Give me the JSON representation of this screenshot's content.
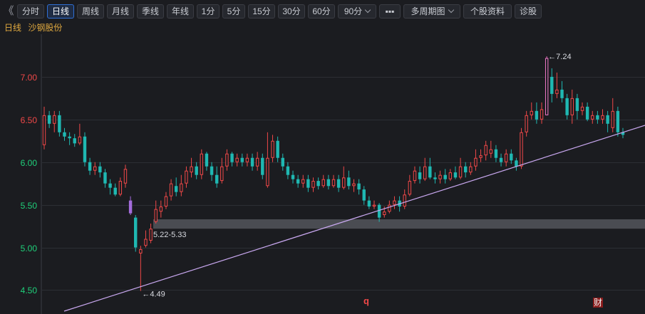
{
  "toolbar": {
    "back_glyph": "《",
    "buttons": [
      {
        "label": "分时",
        "active": false,
        "dropdown": false
      },
      {
        "label": "日线",
        "active": true,
        "dropdown": false
      },
      {
        "label": "周线",
        "active": false,
        "dropdown": false
      },
      {
        "label": "月线",
        "active": false,
        "dropdown": false
      },
      {
        "label": "季线",
        "active": false,
        "dropdown": false
      },
      {
        "label": "年线",
        "active": false,
        "dropdown": false
      },
      {
        "label": "1分",
        "active": false,
        "dropdown": false
      },
      {
        "label": "5分",
        "active": false,
        "dropdown": false
      },
      {
        "label": "15分",
        "active": false,
        "dropdown": false
      },
      {
        "label": "30分",
        "active": false,
        "dropdown": false
      },
      {
        "label": "60分",
        "active": false,
        "dropdown": false
      },
      {
        "label": "90分",
        "active": false,
        "dropdown": true
      },
      {
        "label": "▪▪▪",
        "active": false,
        "dropdown": false
      },
      {
        "label": "多周期图",
        "active": false,
        "dropdown": true
      },
      {
        "label": "个股资料",
        "active": false,
        "dropdown": false
      },
      {
        "label": "诊股",
        "active": false,
        "dropdown": false
      }
    ]
  },
  "header": {
    "period": "日线",
    "stock_name": "沙钢股份"
  },
  "colors": {
    "up": "#f04848",
    "down": "#1fb8b2",
    "grid": "#2c2e34",
    "trendline": "#c9a8f0",
    "support_band": "#4a4c52",
    "special": "#a46cdc",
    "high": "#f078c8"
  },
  "chart_data": {
    "type": "candlestick",
    "y_ticks": [
      {
        "label": "7.00",
        "value": 7.0,
        "color": "#f04848"
      },
      {
        "label": "6.50",
        "value": 6.5,
        "color": "#f04848"
      },
      {
        "label": "6.00",
        "value": 6.0,
        "color": "#1fd07a"
      },
      {
        "label": "5.50",
        "value": 5.5,
        "color": "#1fd07a"
      },
      {
        "label": "5.00",
        "value": 5.0,
        "color": "#1fd07a"
      },
      {
        "label": "4.50",
        "value": 4.5,
        "color": "#1fd07a"
      }
    ],
    "ylim": [
      4.22,
      7.5
    ],
    "candles": [
      [
        6.2,
        6.55,
        6.65,
        6.15
      ],
      [
        6.55,
        6.45,
        6.6,
        6.4
      ],
      [
        6.45,
        6.55,
        6.6,
        6.35
      ],
      [
        6.55,
        6.35,
        6.6,
        6.3
      ],
      [
        6.35,
        6.3,
        6.4,
        6.25
      ],
      [
        6.3,
        6.28,
        6.35,
        6.2
      ],
      [
        6.28,
        6.22,
        6.33,
        6.18
      ],
      [
        6.22,
        6.3,
        6.45,
        6.2
      ],
      [
        6.3,
        6.0,
        6.35,
        5.95
      ],
      [
        6.0,
        5.9,
        6.05,
        5.85
      ],
      [
        5.9,
        5.95,
        6.0,
        5.85
      ],
      [
        5.95,
        5.88,
        6.0,
        5.82
      ],
      [
        5.88,
        5.75,
        5.92,
        5.7
      ],
      [
        5.75,
        5.7,
        5.8,
        5.62
      ],
      [
        5.7,
        5.62,
        5.75,
        5.6
      ],
      [
        5.62,
        5.78,
        5.82,
        5.6
      ],
      [
        5.75,
        5.92,
        5.97,
        5.7
      ],
      [
        5.55,
        5.4,
        5.6,
        5.38
      ],
      [
        5.35,
        5.0,
        5.38,
        4.95
      ],
      [
        4.93,
        4.98,
        5.02,
        4.49
      ],
      [
        5.02,
        5.1,
        5.2,
        5.0
      ],
      [
        5.08,
        5.22,
        5.28,
        5.05
      ],
      [
        5.3,
        5.45,
        5.55,
        5.28
      ],
      [
        5.42,
        5.48,
        5.55,
        5.35
      ],
      [
        5.48,
        5.6,
        5.65,
        5.45
      ],
      [
        5.6,
        5.75,
        5.8,
        5.55
      ],
      [
        5.72,
        5.65,
        5.82,
        5.6
      ],
      [
        5.65,
        5.75,
        5.85,
        5.6
      ],
      [
        5.75,
        5.9,
        5.95,
        5.7
      ],
      [
        5.88,
        5.95,
        6.05,
        5.82
      ],
      [
        5.95,
        5.85,
        6.0,
        5.8
      ],
      [
        5.85,
        6.1,
        6.15,
        5.8
      ],
      [
        6.1,
        5.95,
        6.12,
        5.9
      ],
      [
        5.95,
        5.85,
        6.0,
        5.78
      ],
      [
        5.85,
        5.75,
        5.95,
        5.7
      ],
      [
        5.78,
        5.95,
        6.05,
        5.75
      ],
      [
        5.95,
        6.1,
        6.15,
        5.9
      ],
      [
        6.1,
        6.0,
        6.12,
        5.95
      ],
      [
        6.0,
        6.05,
        6.1,
        5.95
      ],
      [
        6.05,
        6.0,
        6.1,
        5.95
      ],
      [
        6.0,
        6.05,
        6.1,
        5.95
      ],
      [
        6.05,
        5.95,
        6.1,
        5.9
      ],
      [
        5.95,
        6.05,
        6.12,
        5.9
      ],
      [
        6.05,
        5.85,
        6.1,
        5.8
      ],
      [
        5.72,
        6.05,
        6.35,
        5.7
      ],
      [
        6.05,
        6.25,
        6.32,
        6.0
      ],
      [
        6.25,
        6.05,
        6.3,
        6.0
      ],
      [
        6.05,
        5.95,
        6.1,
        5.9
      ],
      [
        5.95,
        5.85,
        6.0,
        5.8
      ],
      [
        5.85,
        5.8,
        5.9,
        5.75
      ],
      [
        5.8,
        5.75,
        5.85,
        5.7
      ],
      [
        5.75,
        5.8,
        5.85,
        5.7
      ],
      [
        5.8,
        5.7,
        5.85,
        5.65
      ],
      [
        5.7,
        5.78,
        5.82,
        5.65
      ],
      [
        5.78,
        5.72,
        5.82,
        5.68
      ],
      [
        5.72,
        5.8,
        5.85,
        5.7
      ],
      [
        5.8,
        5.72,
        5.85,
        5.68
      ],
      [
        5.72,
        5.8,
        5.85,
        5.7
      ],
      [
        5.8,
        5.7,
        5.85,
        5.65
      ],
      [
        5.7,
        5.82,
        5.95,
        5.68
      ],
      [
        5.82,
        5.72,
        5.9,
        5.68
      ],
      [
        5.72,
        5.75,
        5.8,
        5.65
      ],
      [
        5.75,
        5.68,
        5.8,
        5.62
      ],
      [
        5.68,
        5.55,
        5.72,
        5.5
      ],
      [
        5.55,
        5.48,
        5.6,
        5.45
      ],
      [
        5.48,
        5.5,
        5.55,
        5.45
      ],
      [
        5.5,
        5.35,
        5.52,
        5.3
      ],
      [
        5.38,
        5.42,
        5.48,
        5.35
      ],
      [
        5.42,
        5.5,
        5.55,
        5.4
      ],
      [
        5.5,
        5.55,
        5.6,
        5.45
      ],
      [
        5.55,
        5.48,
        5.6,
        5.42
      ],
      [
        5.48,
        5.62,
        5.68,
        5.45
      ],
      [
        5.62,
        5.78,
        5.85,
        5.6
      ],
      [
        5.78,
        5.9,
        5.95,
        5.75
      ],
      [
        5.88,
        5.8,
        5.95,
        5.75
      ],
      [
        5.8,
        5.95,
        6.05,
        5.78
      ],
      [
        5.95,
        5.82,
        6.05,
        5.8
      ],
      [
        5.82,
        5.8,
        5.88,
        5.75
      ],
      [
        5.8,
        5.85,
        5.9,
        5.75
      ],
      [
        5.85,
        5.8,
        5.92,
        5.75
      ],
      [
        5.8,
        5.88,
        5.92,
        5.78
      ],
      [
        5.88,
        5.82,
        5.95,
        5.8
      ],
      [
        5.82,
        5.95,
        6.05,
        5.8
      ],
      [
        5.95,
        5.88,
        6.0,
        5.82
      ],
      [
        5.88,
        5.95,
        6.0,
        5.85
      ],
      [
        5.95,
        6.05,
        6.15,
        5.9
      ],
      [
        6.05,
        6.08,
        6.15,
        6.0
      ],
      [
        6.08,
        6.2,
        6.25,
        6.02
      ],
      [
        6.1,
        6.15,
        6.25,
        6.05
      ],
      [
        6.15,
        6.05,
        6.2,
        6.0
      ],
      [
        6.05,
        6.0,
        6.1,
        5.95
      ],
      [
        6.0,
        6.1,
        6.15,
        5.95
      ],
      [
        6.1,
        6.02,
        6.15,
        5.98
      ],
      [
        6.02,
        5.95,
        6.05,
        5.9
      ],
      [
        5.95,
        6.35,
        6.4,
        5.92
      ],
      [
        6.35,
        6.55,
        6.6,
        6.3
      ],
      [
        6.55,
        6.6,
        6.7,
        6.5
      ],
      [
        6.6,
        6.5,
        6.7,
        6.45
      ],
      [
        6.5,
        6.62,
        6.7,
        6.45
      ],
      [
        6.55,
        7.22,
        7.24,
        6.55
      ],
      [
        7.0,
        6.8,
        7.1,
        6.7
      ],
      [
        6.8,
        6.85,
        7.05,
        6.75
      ],
      [
        6.85,
        6.75,
        6.95,
        6.7
      ],
      [
        6.75,
        6.55,
        6.8,
        6.5
      ],
      [
        6.55,
        6.75,
        6.85,
        6.45
      ],
      [
        6.75,
        6.6,
        6.8,
        6.5
      ],
      [
        6.6,
        6.65,
        6.7,
        6.55
      ],
      [
        6.65,
        6.5,
        6.7,
        6.48
      ],
      [
        6.5,
        6.55,
        6.6,
        6.45
      ],
      [
        6.55,
        6.5,
        6.6,
        6.45
      ],
      [
        6.5,
        6.55,
        6.62,
        6.45
      ],
      [
        6.55,
        6.45,
        6.6,
        6.35
      ],
      [
        6.4,
        6.6,
        6.75,
        6.35
      ],
      [
        6.6,
        6.35,
        6.65,
        6.3
      ],
      [
        6.35,
        6.32,
        6.4,
        6.28
      ]
    ],
    "support_band": {
      "low": 5.22,
      "high": 5.33,
      "label": "5.22-5.33"
    },
    "high_marker": {
      "label": "←7.24",
      "value": 7.24
    },
    "low_marker": {
      "label": "←4.49",
      "value": 4.49
    },
    "bottom_markers": [
      {
        "label": "q",
        "color": "#f04848"
      },
      {
        "label": "财",
        "color": "#f0f0f0"
      }
    ]
  }
}
